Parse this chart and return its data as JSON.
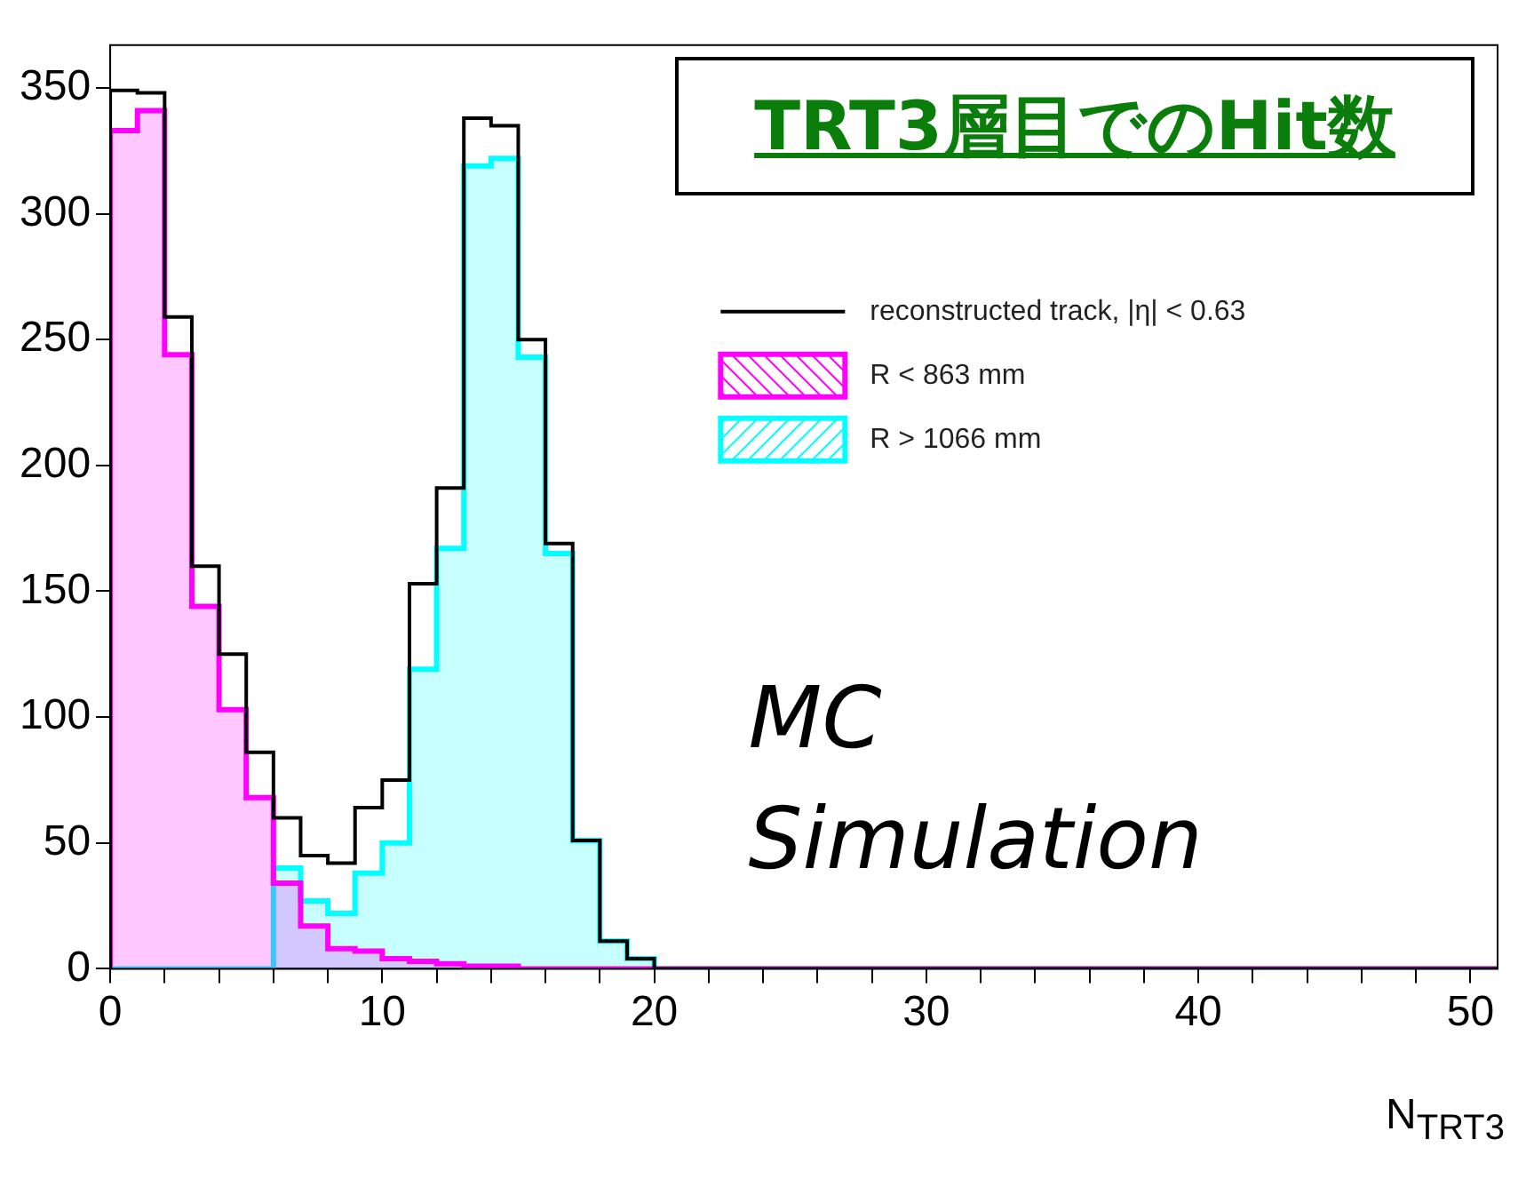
{
  "chart_data": {
    "type": "histogram",
    "title": "TRT3層目でのHit数",
    "xlabel": "N$_{TRT3}$",
    "bins": [
      0,
      1,
      2,
      3,
      4,
      5,
      6,
      7,
      8,
      9,
      10,
      11,
      12,
      13,
      14,
      15,
      16,
      17,
      18,
      19,
      20,
      21,
      22,
      23,
      24,
      25,
      26,
      27,
      28,
      29,
      30,
      31,
      32,
      33,
      34,
      35,
      36,
      37,
      38,
      39,
      40,
      41,
      42,
      43,
      44,
      45,
      46,
      47,
      48,
      49,
      50,
      51
    ],
    "series": [
      {
        "name": "reconstructed track, |η| < 0.63",
        "color": "#000000",
        "values": [
          349,
          348,
          259,
          160,
          125,
          86,
          60,
          45,
          42,
          64,
          75,
          153,
          191,
          338,
          335,
          250,
          169,
          51,
          11,
          4,
          0,
          0,
          0,
          0,
          0,
          0,
          0,
          0,
          0,
          0,
          0,
          0,
          0,
          0,
          0,
          0,
          0,
          0,
          0,
          0,
          0,
          0,
          0,
          0,
          0,
          0,
          0,
          0,
          0,
          0,
          0
        ]
      },
      {
        "name": "R < 863 mm",
        "color": "#ff00ff",
        "values": [
          333,
          341,
          244,
          144,
          103,
          68,
          34,
          17,
          8,
          7,
          4,
          3,
          2,
          1,
          1,
          0,
          0,
          0,
          0,
          0,
          0,
          0,
          0,
          0,
          0,
          0,
          0,
          0,
          0,
          0,
          0,
          0,
          0,
          0,
          0,
          0,
          0,
          0,
          0,
          0,
          0,
          0,
          0,
          0,
          0,
          0,
          0,
          0,
          0,
          0,
          0
        ]
      },
      {
        "name": "R > 1066 mm",
        "color": "#00ffff",
        "values": [
          0,
          0,
          0,
          0,
          0,
          0,
          40,
          27,
          22,
          38,
          50,
          119,
          167,
          319,
          322,
          243,
          165,
          51,
          11,
          4,
          0,
          0,
          0,
          0,
          0,
          0,
          0,
          0,
          0,
          0,
          0,
          0,
          0,
          0,
          0,
          0,
          0,
          0,
          0,
          0,
          0,
          0,
          0,
          0,
          0,
          0,
          0,
          0,
          0,
          0,
          0
        ]
      }
    ],
    "xlim": [
      0,
      51
    ],
    "xticks": [
      0,
      {
        "value": 2,
        "label": null
      },
      {
        "value": 4,
        "label": null
      },
      {
        "value": 6,
        "label": null
      },
      {
        "value": 8,
        "label": null
      },
      10,
      {
        "value": 12,
        "label": null
      },
      {
        "value": 14,
        "label": null
      },
      {
        "value": 16,
        "label": null
      },
      {
        "value": 18,
        "label": null
      },
      20,
      {
        "value": 22,
        "label": null
      },
      {
        "value": 24,
        "label": null
      },
      {
        "value": 26,
        "label": null
      },
      {
        "value": 28,
        "label": null
      },
      30,
      {
        "value": 32,
        "label": null
      },
      {
        "value": 34,
        "label": null
      },
      {
        "value": 36,
        "label": null
      },
      {
        "value": 38,
        "label": null
      },
      40,
      {
        "value": 42,
        "label": null
      },
      {
        "value": 44,
        "label": null
      },
      {
        "value": 46,
        "label": null
      },
      {
        "value": 48,
        "label": null
      },
      50
    ],
    "ylim": [
      0,
      367
    ],
    "yticks": [
      0,
      50,
      100,
      150,
      200,
      250,
      300,
      350
    ],
    "legend": "top right",
    "annotations": [
      "MC Simulation"
    ]
  }
}
